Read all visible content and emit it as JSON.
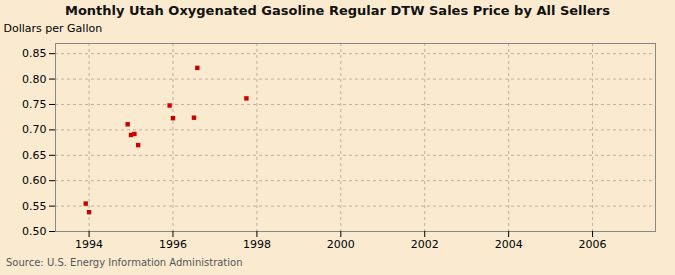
{
  "chart_data": {
    "type": "scatter",
    "title": "Monthly Utah Oxygenated Gasoline Regular DTW Sales Price by All Sellers",
    "ylabel": "Dollars per Gallon",
    "annotations": [
      "Source: U.S. Energy Information Administration"
    ],
    "x": [
      1993.92,
      1994.0,
      1994.92,
      1995.0,
      1995.08,
      1995.17,
      1995.92,
      1996.0,
      1996.5,
      1996.58,
      1997.75
    ],
    "values": [
      0.555,
      0.538,
      0.711,
      0.69,
      0.692,
      0.67,
      0.748,
      0.723,
      0.724,
      0.822,
      0.762
    ],
    "color": "#cc0000",
    "marker": "square",
    "xlim": [
      1993.2,
      2007.5
    ],
    "ylim": [
      0.5,
      0.87
    ],
    "xticks": [
      1994,
      1996,
      1998,
      2000,
      2002,
      2004,
      2006
    ],
    "yticks": [
      {
        "value": 0.5,
        "label": "0.50"
      },
      0.55,
      {
        "value": 0.6,
        "label": "0.60"
      },
      0.65,
      {
        "value": 0.7,
        "label": "0.70"
      },
      0.75,
      {
        "value": 0.8,
        "label": "0.80"
      },
      0.85
    ],
    "grid": true
  }
}
